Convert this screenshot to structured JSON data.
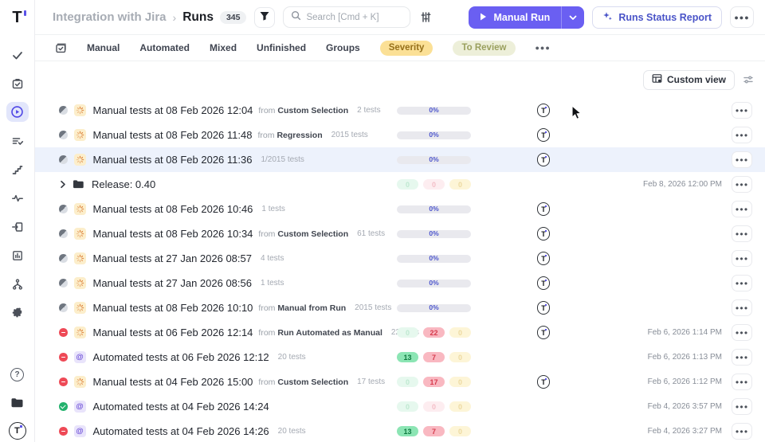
{
  "app": {
    "logo_text": "T"
  },
  "colors": {
    "accent": "#6a5ff2",
    "report_text": "#4a54c8",
    "severity_pill_bg": "#fbe096",
    "to_review_pill_bg": "#edefd9",
    "passed_green": "#23b26d",
    "failed_red": "#ee4956",
    "progress_text": "#4c55cc",
    "row_highlight": "#edf2fc"
  },
  "sidebar": {
    "active_index": 2,
    "items": [
      {
        "icon": "check-icon"
      },
      {
        "icon": "clipboard-check-icon"
      },
      {
        "icon": "play-circle-icon"
      },
      {
        "icon": "list-check-icon"
      },
      {
        "icon": "steps-icon"
      },
      {
        "icon": "pulse-icon"
      },
      {
        "icon": "import-box-icon"
      },
      {
        "icon": "bar-chart-icon"
      },
      {
        "icon": "branch-icon"
      },
      {
        "icon": "gear-icon"
      }
    ],
    "bottom": [
      {
        "icon": "help-icon",
        "glyph": "?"
      },
      {
        "icon": "folder-dark-icon"
      },
      {
        "icon": "user-avatar",
        "glyph": "T"
      }
    ]
  },
  "header": {
    "breadcrumb": {
      "project": "Integration with Jira",
      "separator": "›",
      "page": "Runs",
      "count": "345"
    },
    "search": {
      "placeholder": "Search [Cmd + K]"
    },
    "buttons": {
      "manual_run": "Manual Run",
      "runs_status_report": "Runs Status Report"
    }
  },
  "tabs": {
    "items": [
      "Manual",
      "Automated",
      "Mixed",
      "Unfinished",
      "Groups"
    ],
    "severity": "Severity",
    "to_review": "To Review"
  },
  "toolbar": {
    "custom_view": "Custom view"
  },
  "icons": {
    "row_menu": "●●●",
    "header_more": "●●●",
    "tabs_more": "●●●",
    "automated_glyph": "@"
  },
  "rows": [
    {
      "kind": "run",
      "status": "in-progress",
      "type": "manual",
      "title": "Manual tests at 08 Feb 2026 12:04",
      "from_label": "from",
      "from": "Custom Selection",
      "count": "2 tests",
      "progress": "0%",
      "avatar": true
    },
    {
      "kind": "run",
      "status": "in-progress",
      "type": "manual",
      "title": "Manual tests at 08 Feb 2026 11:48",
      "from_label": "from",
      "from": "Regression",
      "count": "2015 tests",
      "progress": "0%",
      "avatar": true
    },
    {
      "kind": "run",
      "status": "in-progress",
      "type": "manual",
      "title": "Manual tests at 08 Feb 2026 11:36",
      "count": "1/2015 tests",
      "progress": "0%",
      "avatar": true,
      "highlighted": true
    },
    {
      "kind": "folder",
      "title": "Release: 0.40",
      "stats": [
        {
          "value": "0",
          "tone": "green",
          "strong": false
        },
        {
          "value": "0",
          "tone": "red",
          "strong": false
        },
        {
          "value": "0",
          "tone": "yellow",
          "strong": false
        }
      ],
      "date": "Feb 8, 2026 12:00 PM"
    },
    {
      "kind": "run",
      "status": "in-progress",
      "type": "manual",
      "title": "Manual tests at 08 Feb 2026 10:46",
      "count": "1 tests",
      "progress": "0%",
      "avatar": true
    },
    {
      "kind": "run",
      "status": "in-progress",
      "type": "manual",
      "title": "Manual tests at 08 Feb 2026 10:34",
      "from_label": "from",
      "from": "Custom Selection",
      "count": "61 tests",
      "progress": "0%",
      "avatar": true
    },
    {
      "kind": "run",
      "status": "in-progress",
      "type": "manual",
      "title": "Manual tests at 27 Jan 2026 08:57",
      "count": "4 tests",
      "progress": "0%",
      "avatar": true
    },
    {
      "kind": "run",
      "status": "in-progress",
      "type": "manual",
      "title": "Manual tests at 27 Jan 2026 08:56",
      "count": "1 tests",
      "progress": "0%",
      "avatar": true
    },
    {
      "kind": "run",
      "status": "in-progress",
      "type": "manual",
      "title": "Manual tests at 08 Feb 2026 10:10",
      "from_label": "from",
      "from": "Manual from Run",
      "count": "2015 tests",
      "progress": "0%",
      "avatar": true
    },
    {
      "kind": "run",
      "status": "failed",
      "type": "manual",
      "title": "Manual tests at 06 Feb 2026 12:14",
      "from_label": "from",
      "from": "Run Automated as Manual",
      "count": "22 tests",
      "stats": [
        {
          "value": "0",
          "tone": "green",
          "strong": false
        },
        {
          "value": "22",
          "tone": "red",
          "strong": true
        },
        {
          "value": "0",
          "tone": "yellow",
          "strong": false
        }
      ],
      "avatar": true,
      "date": "Feb 6, 2026 1:14 PM"
    },
    {
      "kind": "run",
      "status": "failed",
      "type": "automated",
      "title": "Automated tests at 06 Feb 2026 12:12",
      "count": "20 tests",
      "stats": [
        {
          "value": "13",
          "tone": "green",
          "strong": true
        },
        {
          "value": "7",
          "tone": "red",
          "strong": true
        },
        {
          "value": "0",
          "tone": "yellow",
          "strong": false
        }
      ],
      "avatar": false,
      "date": "Feb 6, 2026 1:13 PM"
    },
    {
      "kind": "run",
      "status": "failed",
      "type": "manual",
      "title": "Manual tests at 04 Feb 2026 15:00",
      "from_label": "from",
      "from": "Custom Selection",
      "count": "17 tests",
      "stats": [
        {
          "value": "0",
          "tone": "green",
          "strong": false
        },
        {
          "value": "17",
          "tone": "red",
          "strong": true
        },
        {
          "value": "0",
          "tone": "yellow",
          "strong": false
        }
      ],
      "avatar": true,
      "date": "Feb 6, 2026 1:12 PM"
    },
    {
      "kind": "run",
      "status": "passed",
      "type": "automated",
      "title": "Automated tests at 04 Feb 2026 14:24",
      "stats": [
        {
          "value": "0",
          "tone": "green",
          "strong": false
        },
        {
          "value": "0",
          "tone": "red",
          "strong": false
        },
        {
          "value": "0",
          "tone": "yellow",
          "strong": false
        }
      ],
      "avatar": false,
      "date": "Feb 4, 2026 3:57 PM"
    },
    {
      "kind": "run",
      "status": "failed",
      "type": "automated",
      "title": "Automated tests at 04 Feb 2026 14:26",
      "count": "20 tests",
      "stats": [
        {
          "value": "13",
          "tone": "green",
          "strong": true
        },
        {
          "value": "7",
          "tone": "red",
          "strong": true
        },
        {
          "value": "0",
          "tone": "yellow",
          "strong": false
        }
      ],
      "avatar": false,
      "date": "Feb 4, 2026 3:27 PM"
    }
  ]
}
